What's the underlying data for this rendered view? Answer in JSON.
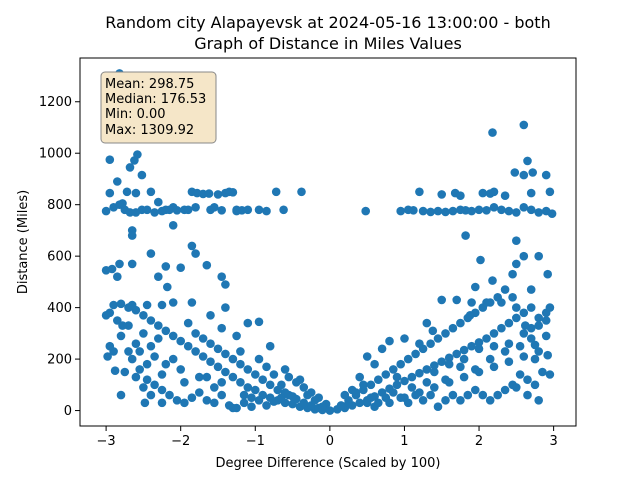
{
  "chart_data": {
    "type": "scatter",
    "title_line1": "Random city Alapayevsk at 2024-05-16 13:00:00  - both",
    "title_line2": "Graph of Distance in Miles Values",
    "xlabel": "Degree Difference (Scaled by 100)",
    "ylabel": "Distance (Miles)",
    "xlim": [
      -3.35,
      3.3
    ],
    "ylim": [
      -60,
      1370
    ],
    "xticks": [
      -3,
      -2,
      -1,
      0,
      1,
      2,
      3
    ],
    "yticks": [
      0,
      200,
      400,
      600,
      800,
      1000,
      1200
    ],
    "point_color": "#1f77b4",
    "stats": {
      "mean": "Mean: 298.75",
      "median": "Median: 176.53",
      "min": "Min: 0.00",
      "max": "Max: 1309.92"
    },
    "points": [
      [
        -2.82,
        1310
      ],
      [
        -2.95,
        975
      ],
      [
        -2.68,
        945
      ],
      [
        -2.62,
        972
      ],
      [
        -2.58,
        995
      ],
      [
        -2.52,
        915
      ],
      [
        -2.95,
        845
      ],
      [
        -2.85,
        890
      ],
      [
        -2.78,
        805
      ],
      [
        -2.72,
        850
      ],
      [
        -2.6,
        845
      ],
      [
        -2.52,
        780
      ],
      [
        -2.4,
        850
      ],
      [
        -2.3,
        810
      ],
      [
        -2.2,
        780
      ],
      [
        -2.1,
        790
      ],
      [
        -1.95,
        780
      ],
      [
        -1.85,
        850
      ],
      [
        -1.78,
        845
      ],
      [
        -1.7,
        842
      ],
      [
        -1.62,
        843
      ],
      [
        -1.5,
        840
      ],
      [
        -1.4,
        845
      ],
      [
        -1.35,
        850
      ],
      [
        -1.3,
        848
      ],
      [
        -1.25,
        780
      ],
      [
        -1.18,
        778
      ],
      [
        -1.1,
        780
      ],
      [
        -0.95,
        780
      ],
      [
        -0.85,
        775
      ],
      [
        -0.72,
        850
      ],
      [
        -0.62,
        780
      ],
      [
        -0.38,
        850
      ],
      [
        -3.0,
        775
      ],
      [
        -2.9,
        790
      ],
      [
        -2.82,
        800
      ],
      [
        -2.75,
        780
      ],
      [
        -2.68,
        770
      ],
      [
        -2.6,
        770
      ],
      [
        -2.45,
        780
      ],
      [
        -2.35,
        770
      ],
      [
        -2.25,
        775
      ],
      [
        -2.15,
        780
      ],
      [
        -2.05,
        778
      ],
      [
        -1.9,
        780
      ],
      [
        -1.8,
        790
      ],
      [
        -1.6,
        780
      ],
      [
        -1.55,
        790
      ],
      [
        -1.45,
        778
      ],
      [
        -1.25,
        775
      ],
      [
        0.48,
        775
      ],
      [
        0.95,
        775
      ],
      [
        1.05,
        780
      ],
      [
        1.12,
        778
      ],
      [
        1.25,
        775
      ],
      [
        1.35,
        772
      ],
      [
        1.45,
        775
      ],
      [
        1.55,
        772
      ],
      [
        1.65,
        775
      ],
      [
        1.75,
        780
      ],
      [
        1.82,
        778
      ],
      [
        1.9,
        775
      ],
      [
        2.0,
        780
      ],
      [
        2.1,
        778
      ],
      [
        2.2,
        790
      ],
      [
        2.3,
        780
      ],
      [
        2.4,
        775
      ],
      [
        2.5,
        770
      ],
      [
        2.6,
        790
      ],
      [
        2.7,
        780
      ],
      [
        2.8,
        770
      ],
      [
        2.9,
        775
      ],
      [
        2.98,
        765
      ],
      [
        1.2,
        850
      ],
      [
        1.5,
        840
      ],
      [
        1.68,
        845
      ],
      [
        1.75,
        835
      ],
      [
        2.05,
        845
      ],
      [
        2.15,
        843
      ],
      [
        2.2,
        850
      ],
      [
        2.35,
        835
      ],
      [
        2.48,
        925
      ],
      [
        2.6,
        915
      ],
      [
        2.65,
        970
      ],
      [
        2.72,
        925
      ],
      [
        2.9,
        915
      ],
      [
        2.95,
        850
      ],
      [
        2.7,
        845
      ],
      [
        2.18,
        1080
      ],
      [
        2.6,
        1110
      ],
      [
        -2.4,
        610
      ],
      [
        -2.3,
        520
      ],
      [
        -2.2,
        560
      ],
      [
        -2.0,
        555
      ],
      [
        -1.85,
        640
      ],
      [
        -1.8,
        610
      ],
      [
        -1.65,
        565
      ],
      [
        -1.45,
        520
      ],
      [
        -1.4,
        490
      ],
      [
        -2.65,
        700
      ],
      [
        -2.65,
        680
      ],
      [
        -2.82,
        570
      ],
      [
        -2.65,
        570
      ],
      [
        -3.0,
        545
      ],
      [
        -2.92,
        550
      ],
      [
        -2.85,
        520
      ],
      [
        -2.1,
        720
      ],
      [
        -2.18,
        480
      ],
      [
        1.82,
        680
      ],
      [
        2.02,
        585
      ],
      [
        2.18,
        505
      ],
      [
        2.35,
        470
      ],
      [
        2.5,
        570
      ],
      [
        2.6,
        600
      ],
      [
        2.8,
        600
      ],
      [
        2.92,
        530
      ],
      [
        2.5,
        660
      ],
      [
        2.7,
        470
      ],
      [
        1.95,
        480
      ],
      [
        2.45,
        440
      ],
      [
        -3.0,
        370
      ],
      [
        -2.95,
        380
      ],
      [
        -2.9,
        410
      ],
      [
        -2.85,
        350
      ],
      [
        -2.8,
        415
      ],
      [
        -2.7,
        400
      ],
      [
        -2.6,
        390
      ],
      [
        -2.5,
        370
      ],
      [
        -2.4,
        350
      ],
      [
        -2.3,
        330
      ],
      [
        -2.2,
        310
      ],
      [
        -2.1,
        290
      ],
      [
        -2.0,
        270
      ],
      [
        -1.9,
        250
      ],
      [
        -1.8,
        230
      ],
      [
        -1.7,
        210
      ],
      [
        -1.6,
        190
      ],
      [
        -1.5,
        170
      ],
      [
        -1.4,
        150
      ],
      [
        -1.3,
        130
      ],
      [
        -1.2,
        110
      ],
      [
        -1.1,
        90
      ],
      [
        -1.0,
        80
      ],
      [
        -0.9,
        60
      ],
      [
        -0.8,
        50
      ],
      [
        -0.7,
        40
      ],
      [
        -0.6,
        30
      ],
      [
        -0.5,
        25
      ],
      [
        -0.4,
        15
      ],
      [
        -0.3,
        10
      ],
      [
        -0.2,
        5
      ],
      [
        -0.1,
        2
      ],
      [
        0.0,
        0
      ],
      [
        -2.98,
        210
      ],
      [
        -2.9,
        230
      ],
      [
        -2.75,
        150
      ],
      [
        -2.65,
        200
      ],
      [
        -2.55,
        160
      ],
      [
        -2.45,
        120
      ],
      [
        -2.35,
        100
      ],
      [
        -2.25,
        80
      ],
      [
        -2.15,
        60
      ],
      [
        -2.05,
        40
      ],
      [
        -1.95,
        30
      ],
      [
        -1.85,
        50
      ],
      [
        -1.75,
        70
      ],
      [
        -1.65,
        40
      ],
      [
        -1.55,
        30
      ],
      [
        -1.45,
        60
      ],
      [
        -1.35,
        20
      ],
      [
        -1.25,
        10
      ],
      [
        -1.15,
        30
      ],
      [
        -1.05,
        15
      ],
      [
        -0.95,
        40
      ],
      [
        -0.85,
        20
      ],
      [
        -0.75,
        35
      ],
      [
        -0.65,
        50
      ],
      [
        -0.55,
        60
      ],
      [
        -0.45,
        45
      ],
      [
        -0.35,
        30
      ],
      [
        -0.25,
        20
      ],
      [
        -0.15,
        10
      ],
      [
        -2.7,
        330
      ],
      [
        -2.6,
        260
      ],
      [
        -2.5,
        300
      ],
      [
        -2.4,
        250
      ],
      [
        -2.3,
        280
      ],
      [
        -2.2,
        180
      ],
      [
        -2.1,
        200
      ],
      [
        -2.0,
        160
      ],
      [
        -1.9,
        340
      ],
      [
        -1.8,
        300
      ],
      [
        -1.7,
        280
      ],
      [
        -1.6,
        260
      ],
      [
        -1.5,
        240
      ],
      [
        -1.4,
        220
      ],
      [
        -1.3,
        200
      ],
      [
        -1.2,
        180
      ],
      [
        -1.1,
        160
      ],
      [
        -1.0,
        140
      ],
      [
        -0.9,
        120
      ],
      [
        -0.8,
        100
      ],
      [
        -0.7,
        80
      ],
      [
        -0.6,
        70
      ],
      [
        -0.5,
        55
      ],
      [
        -2.55,
        230
      ],
      [
        -2.45,
        180
      ],
      [
        -2.35,
        210
      ],
      [
        -2.25,
        140
      ],
      [
        -1.95,
        110
      ],
      [
        -1.75,
        130
      ],
      [
        -1.55,
        90
      ],
      [
        -1.45,
        110
      ],
      [
        -1.15,
        60
      ],
      [
        -1.05,
        50
      ],
      [
        -0.95,
        200
      ],
      [
        -0.85,
        170
      ],
      [
        -0.75,
        140
      ],
      [
        -0.65,
        100
      ],
      [
        -0.55,
        130
      ],
      [
        -0.45,
        110
      ],
      [
        -0.35,
        90
      ],
      [
        -0.25,
        70
      ],
      [
        -0.15,
        50
      ],
      [
        -0.05,
        25
      ],
      [
        -2.48,
        30
      ],
      [
        -2.25,
        30
      ],
      [
        -1.3,
        10
      ],
      [
        -1.1,
        340
      ],
      [
        -0.95,
        345
      ],
      [
        -1.25,
        290
      ],
      [
        -1.6,
        370
      ],
      [
        -1.85,
        420
      ],
      [
        -2.1,
        420
      ],
      [
        -2.25,
        410
      ],
      [
        -2.45,
        410
      ],
      [
        -2.65,
        410
      ],
      [
        -2.78,
        330
      ],
      [
        -2.8,
        290
      ],
      [
        -2.7,
        230
      ],
      [
        -2.6,
        130
      ],
      [
        -2.5,
        90
      ],
      [
        -2.4,
        60
      ],
      [
        -1.65,
        130
      ],
      [
        -1.4,
        400
      ],
      [
        -1.45,
        320
      ],
      [
        -1.2,
        230
      ],
      [
        -0.8,
        250
      ],
      [
        -0.6,
        160
      ],
      [
        -0.4,
        120
      ],
      [
        -0.3,
        60
      ],
      [
        -0.2,
        40
      ],
      [
        -0.1,
        15
      ],
      [
        -2.88,
        155
      ],
      [
        -2.95,
        250
      ],
      [
        -2.8,
        60
      ],
      [
        0.1,
        5
      ],
      [
        0.2,
        10
      ],
      [
        0.3,
        20
      ],
      [
        0.4,
        30
      ],
      [
        0.5,
        40
      ],
      [
        0.6,
        55
      ],
      [
        0.7,
        70
      ],
      [
        0.8,
        85
      ],
      [
        0.9,
        100
      ],
      [
        1.0,
        115
      ],
      [
        1.1,
        130
      ],
      [
        1.2,
        145
      ],
      [
        1.3,
        160
      ],
      [
        1.4,
        175
      ],
      [
        1.5,
        190
      ],
      [
        1.6,
        205
      ],
      [
        1.7,
        220
      ],
      [
        1.8,
        235
      ],
      [
        1.9,
        250
      ],
      [
        2.0,
        265
      ],
      [
        2.1,
        280
      ],
      [
        2.2,
        300
      ],
      [
        2.3,
        320
      ],
      [
        2.4,
        340
      ],
      [
        2.5,
        360
      ],
      [
        2.6,
        380
      ],
      [
        2.7,
        400
      ],
      [
        2.8,
        360
      ],
      [
        2.9,
        380
      ],
      [
        2.95,
        400
      ],
      [
        0.15,
        20
      ],
      [
        0.25,
        40
      ],
      [
        0.35,
        60
      ],
      [
        0.45,
        80
      ],
      [
        0.55,
        100
      ],
      [
        0.65,
        120
      ],
      [
        0.75,
        140
      ],
      [
        0.85,
        160
      ],
      [
        0.95,
        180
      ],
      [
        1.05,
        200
      ],
      [
        1.15,
        220
      ],
      [
        1.25,
        240
      ],
      [
        1.35,
        260
      ],
      [
        1.45,
        280
      ],
      [
        1.55,
        300
      ],
      [
        1.65,
        320
      ],
      [
        1.75,
        340
      ],
      [
        1.85,
        360
      ],
      [
        1.95,
        380
      ],
      [
        2.05,
        400
      ],
      [
        2.15,
        420
      ],
      [
        2.25,
        440
      ],
      [
        0.2,
        60
      ],
      [
        0.3,
        80
      ],
      [
        0.5,
        30
      ],
      [
        0.6,
        15
      ],
      [
        0.8,
        30
      ],
      [
        1.0,
        50
      ],
      [
        1.2,
        70
      ],
      [
        1.4,
        90
      ],
      [
        1.6,
        110
      ],
      [
        1.8,
        130
      ],
      [
        2.0,
        150
      ],
      [
        2.2,
        170
      ],
      [
        2.4,
        190
      ],
      [
        2.6,
        210
      ],
      [
        2.8,
        230
      ],
      [
        2.95,
        140
      ],
      [
        2.85,
        150
      ],
      [
        2.75,
        100
      ],
      [
        2.65,
        120
      ],
      [
        2.55,
        140
      ],
      [
        2.45,
        100
      ],
      [
        2.35,
        80
      ],
      [
        2.25,
        60
      ],
      [
        2.15,
        40
      ],
      [
        2.05,
        60
      ],
      [
        1.95,
        80
      ],
      [
        1.85,
        60
      ],
      [
        1.75,
        40
      ],
      [
        1.65,
        60
      ],
      [
        1.55,
        40
      ],
      [
        1.45,
        15
      ],
      [
        1.35,
        60
      ],
      [
        1.25,
        40
      ],
      [
        1.15,
        60
      ],
      [
        1.05,
        30
      ],
      [
        0.95,
        50
      ],
      [
        0.85,
        70
      ],
      [
        0.75,
        50
      ],
      [
        0.65,
        30
      ],
      [
        0.55,
        50
      ],
      [
        0.45,
        100
      ],
      [
        0.35,
        70
      ],
      [
        0.25,
        30
      ],
      [
        1.5,
        430
      ],
      [
        1.7,
        430
      ],
      [
        1.9,
        420
      ],
      [
        2.1,
        420
      ],
      [
        2.3,
        420
      ],
      [
        2.5,
        400
      ],
      [
        2.7,
        320
      ],
      [
        2.8,
        330
      ],
      [
        2.9,
        350
      ],
      [
        2.6,
        300
      ],
      [
        2.4,
        260
      ],
      [
        2.2,
        250
      ],
      [
        2.0,
        240
      ],
      [
        1.8,
        200
      ],
      [
        1.6,
        180
      ],
      [
        1.4,
        150
      ],
      [
        1.2,
        260
      ],
      [
        1.0,
        280
      ],
      [
        0.8,
        270
      ],
      [
        0.6,
        180
      ],
      [
        0.5,
        210
      ],
      [
        0.4,
        130
      ],
      [
        0.7,
        240
      ],
      [
        0.9,
        130
      ],
      [
        1.1,
        90
      ],
      [
        1.3,
        110
      ],
      [
        2.7,
        280
      ],
      [
        2.9,
        290
      ],
      [
        2.75,
        200
      ],
      [
        2.55,
        250
      ],
      [
        2.35,
        230
      ],
      [
        2.15,
        200
      ],
      [
        1.95,
        160
      ],
      [
        1.75,
        170
      ],
      [
        1.55,
        120
      ],
      [
        2.5,
        90
      ],
      [
        2.65,
        60
      ],
      [
        2.8,
        40
      ],
      [
        1.3,
        340
      ],
      [
        1.38,
        310
      ],
      [
        1.88,
        370
      ],
      [
        2.45,
        530
      ],
      [
        2.62,
        330
      ],
      [
        2.75,
        255
      ],
      [
        2.92,
        215
      ]
    ]
  }
}
